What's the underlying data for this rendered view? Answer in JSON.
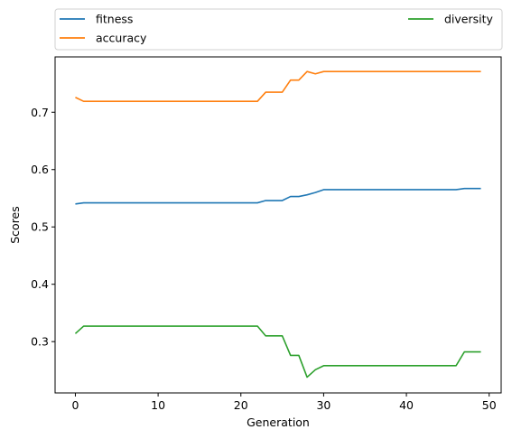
{
  "chart_data": {
    "type": "line",
    "title": "",
    "xlabel": "Generation",
    "ylabel": "Scores",
    "xlim": [
      -2.45,
      51.45
    ],
    "ylim": [
      0.2105,
      0.7965
    ],
    "xticks": [
      0,
      10,
      20,
      30,
      40,
      50
    ],
    "yticks": [
      0.3,
      0.4,
      0.5,
      0.6,
      0.7
    ],
    "xtick_labels": [
      "0",
      "10",
      "20",
      "30",
      "40",
      "50"
    ],
    "ytick_labels": [
      "0.3",
      "0.4",
      "0.5",
      "0.6",
      "0.7"
    ],
    "grid": false,
    "legend_position": "top (above plot, two columns)",
    "x": [
      0,
      1,
      2,
      3,
      4,
      5,
      6,
      7,
      8,
      9,
      10,
      11,
      12,
      13,
      14,
      15,
      16,
      17,
      18,
      19,
      20,
      21,
      22,
      23,
      24,
      25,
      26,
      27,
      28,
      29,
      30,
      31,
      32,
      33,
      34,
      35,
      36,
      37,
      38,
      39,
      40,
      41,
      42,
      43,
      44,
      45,
      46,
      47,
      48,
      49
    ],
    "series": [
      {
        "name": "fitness",
        "color": "#1f77b4",
        "values": [
          0.54,
          0.542,
          0.542,
          0.542,
          0.542,
          0.542,
          0.542,
          0.542,
          0.542,
          0.542,
          0.542,
          0.542,
          0.542,
          0.542,
          0.542,
          0.542,
          0.542,
          0.542,
          0.542,
          0.542,
          0.542,
          0.542,
          0.542,
          0.546,
          0.546,
          0.546,
          0.553,
          0.553,
          0.556,
          0.56,
          0.565,
          0.565,
          0.565,
          0.565,
          0.565,
          0.565,
          0.565,
          0.565,
          0.565,
          0.565,
          0.565,
          0.565,
          0.565,
          0.565,
          0.565,
          0.565,
          0.565,
          0.567,
          0.567,
          0.567
        ]
      },
      {
        "name": "accuracy",
        "color": "#ff7f0e",
        "values": [
          0.726,
          0.719,
          0.719,
          0.719,
          0.719,
          0.719,
          0.719,
          0.719,
          0.719,
          0.719,
          0.719,
          0.719,
          0.719,
          0.719,
          0.719,
          0.719,
          0.719,
          0.719,
          0.719,
          0.719,
          0.719,
          0.719,
          0.719,
          0.735,
          0.735,
          0.735,
          0.756,
          0.756,
          0.771,
          0.767,
          0.771,
          0.771,
          0.771,
          0.771,
          0.771,
          0.771,
          0.771,
          0.771,
          0.771,
          0.771,
          0.771,
          0.771,
          0.771,
          0.771,
          0.771,
          0.771,
          0.771,
          0.771,
          0.771,
          0.771
        ]
      },
      {
        "name": "diversity",
        "color": "#2ca02c",
        "values": [
          0.314,
          0.327,
          0.327,
          0.327,
          0.327,
          0.327,
          0.327,
          0.327,
          0.327,
          0.327,
          0.327,
          0.327,
          0.327,
          0.327,
          0.327,
          0.327,
          0.327,
          0.327,
          0.327,
          0.327,
          0.327,
          0.327,
          0.327,
          0.31,
          0.31,
          0.31,
          0.276,
          0.276,
          0.238,
          0.251,
          0.258,
          0.258,
          0.258,
          0.258,
          0.258,
          0.258,
          0.258,
          0.258,
          0.258,
          0.258,
          0.258,
          0.258,
          0.258,
          0.258,
          0.258,
          0.258,
          0.258,
          0.282,
          0.282,
          0.282
        ]
      }
    ]
  }
}
